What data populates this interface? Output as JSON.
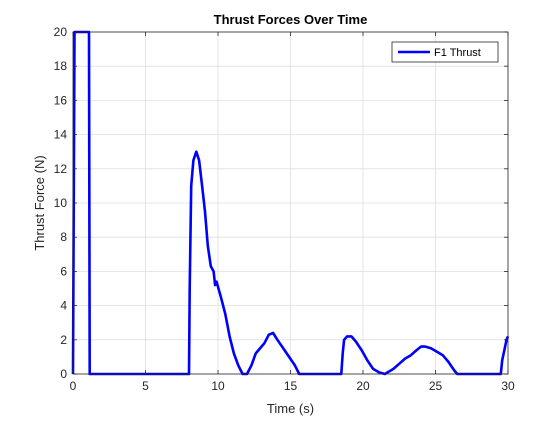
{
  "chart_data": {
    "type": "line",
    "title": "Thrust Forces Over Time",
    "xlabel": "Time (s)",
    "ylabel": "Thrust Force (N)",
    "xlim": [
      0,
      30
    ],
    "ylim": [
      0,
      20
    ],
    "xticks": [
      0,
      5,
      10,
      15,
      20,
      25,
      30
    ],
    "yticks": [
      0,
      2,
      4,
      6,
      8,
      10,
      12,
      14,
      16,
      18,
      20
    ],
    "grid": true,
    "legend": "top-right",
    "series": [
      {
        "name": "F1 Thrust",
        "color": "#0000ff",
        "x": [
          0,
          0.1,
          0.2,
          0.3,
          1.1,
          1.15,
          1.2,
          8.0,
          8.05,
          8.15,
          8.3,
          8.5,
          8.7,
          8.9,
          9.1,
          9.3,
          9.5,
          9.7,
          9.8,
          9.9,
          10.0,
          10.2,
          10.5,
          10.8,
          11.1,
          11.4,
          11.7,
          12.0,
          12.3,
          12.6,
          12.9,
          13.2,
          13.5,
          13.8,
          14.1,
          14.5,
          14.9,
          15.3,
          15.6,
          15.8,
          16.5,
          18.5,
          18.6,
          18.7,
          18.9,
          19.2,
          19.5,
          19.9,
          20.3,
          20.7,
          21.1,
          21.5,
          21.7,
          21.9,
          22.1,
          22.5,
          22.9,
          23.3,
          23.7,
          24.0,
          24.3,
          24.7,
          25.1,
          25.5,
          25.9,
          26.3,
          26.5,
          27.5,
          29.5,
          29.6,
          29.8,
          29.9,
          30.0
        ],
        "y": [
          0,
          20,
          20,
          20,
          20,
          0,
          0,
          0,
          5,
          11,
          12.5,
          13,
          12.5,
          11,
          9.5,
          7.5,
          6.3,
          6,
          5.2,
          5.4,
          5.1,
          4.5,
          3.5,
          2.2,
          1.2,
          0.5,
          0,
          0,
          0.5,
          1.2,
          1.5,
          1.8,
          2.3,
          2.4,
          2.0,
          1.5,
          1.0,
          0.5,
          0,
          0,
          0,
          0,
          1.2,
          2.0,
          2.2,
          2.2,
          1.9,
          1.4,
          0.8,
          0.3,
          0.1,
          0,
          0.1,
          0.2,
          0.3,
          0.6,
          0.9,
          1.1,
          1.4,
          1.6,
          1.6,
          1.5,
          1.3,
          1.1,
          0.7,
          0.2,
          0,
          0,
          0,
          0.8,
          1.6,
          2.0,
          2.2
        ]
      }
    ]
  }
}
